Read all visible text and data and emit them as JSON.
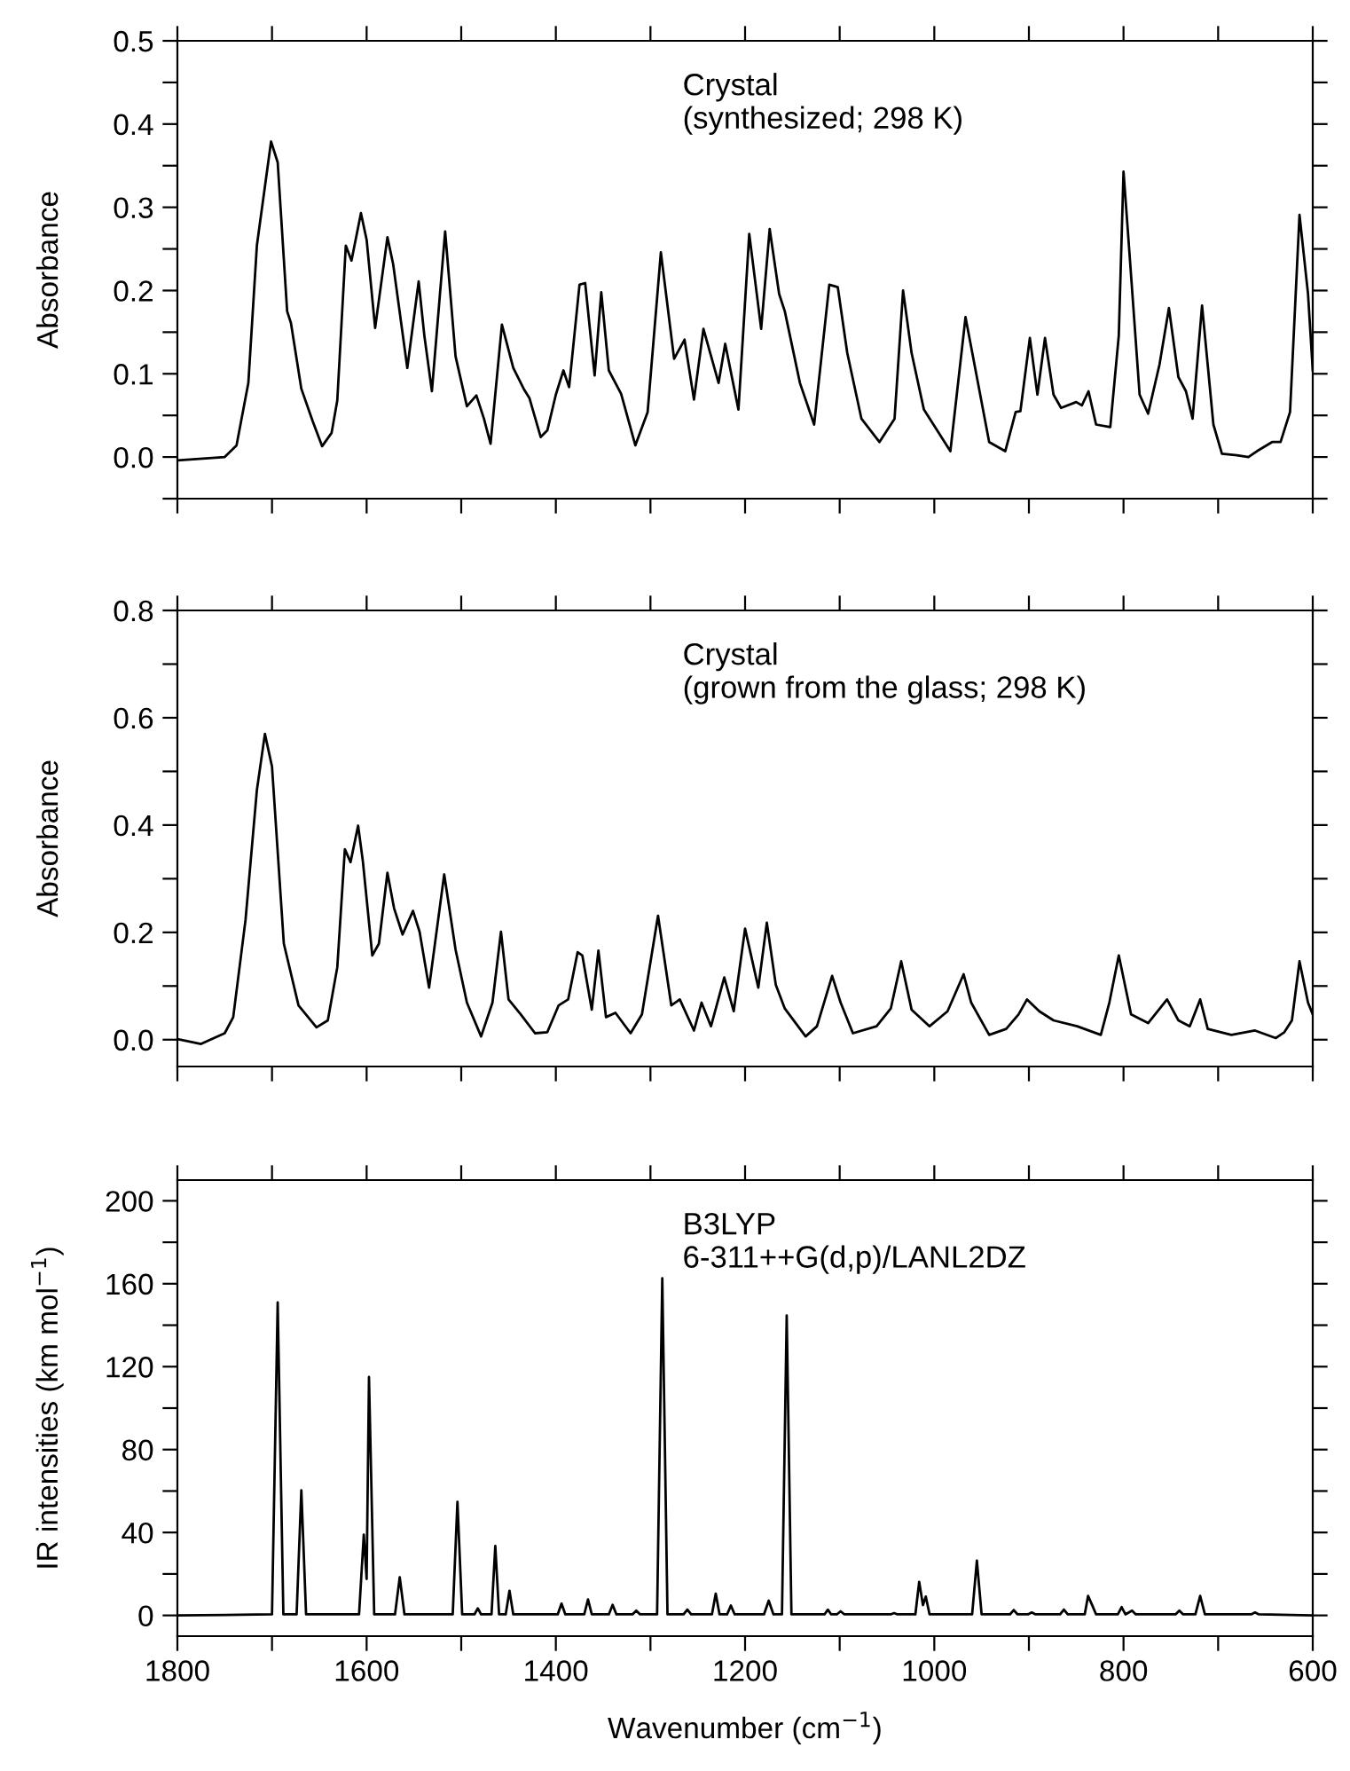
{
  "chart_data": [
    {
      "type": "line",
      "ylabel": "Absorbance",
      "annotations": [
        "Crystal\n(synthesized; 298 K)"
      ],
      "tick_labels": "y",
      "xlim": [
        1800,
        600
      ],
      "xticks": [
        {
          "value": 1800,
          "label": null
        },
        {
          "value": 1700,
          "label": null
        },
        {
          "value": 1600,
          "label": null
        },
        {
          "value": 1500,
          "label": null
        },
        {
          "value": 1400,
          "label": null
        },
        {
          "value": 1300,
          "label": null
        },
        {
          "value": 1200,
          "label": null
        },
        {
          "value": 1100,
          "label": null
        },
        {
          "value": 1000,
          "label": null
        },
        {
          "value": 900,
          "label": null
        },
        {
          "value": 800,
          "label": null
        },
        {
          "value": 700,
          "label": null
        },
        {
          "value": 600,
          "label": null
        }
      ],
      "ylim": [
        -0.05,
        0.5
      ],
      "yticks": [
        {
          "value": -0.05,
          "label": null
        },
        {
          "value": 0.0,
          "label": "0.0"
        },
        {
          "value": 0.05,
          "label": null
        },
        0.1,
        {
          "value": 0.15,
          "label": null
        },
        0.2,
        {
          "value": 0.25,
          "label": null
        },
        0.3,
        {
          "value": 0.35,
          "label": null
        },
        0.4,
        {
          "value": 0.45,
          "label": null
        },
        0.5
      ],
      "series": [
        {
          "color": "#000000",
          "x": [
            1800,
            1750,
            1737.5,
            1725,
            1716,
            1701,
            1694,
            1684,
            1680,
            1669,
            1657,
            1647,
            1637,
            1631,
            1622,
            1616,
            1606,
            1600,
            1591,
            1578,
            1572,
            1557,
            1545,
            1539,
            1531,
            1517,
            1506,
            1494,
            1484,
            1476,
            1469,
            1457,
            1445,
            1434,
            1428,
            1416,
            1409,
            1400,
            1392,
            1386,
            1375,
            1369,
            1359,
            1352,
            1344,
            1331,
            1316,
            1303,
            1289,
            1275,
            1264,
            1254,
            1244,
            1228,
            1221,
            1207,
            1195.6,
            1183,
            1174,
            1164,
            1158,
            1142,
            1127,
            1111,
            1102,
            1092,
            1077,
            1058,
            1042,
            1033,
            1024,
            1011,
            983,
            967,
            955,
            942,
            925,
            914,
            909,
            899,
            891,
            883,
            874,
            866,
            850,
            844,
            837,
            829,
            814,
            805,
            800,
            792,
            783,
            774,
            762,
            752,
            742,
            734,
            727,
            717,
            705,
            696,
            680,
            668,
            659,
            643,
            634,
            624,
            614,
            605,
            600
          ],
          "values": [
            -0.004,
            0.0,
            0.014,
            0.089,
            0.254,
            0.379,
            0.354,
            0.175,
            0.161,
            0.082,
            0.043,
            0.013,
            0.029,
            0.068,
            0.254,
            0.236,
            0.293,
            0.261,
            0.155,
            0.264,
            0.232,
            0.107,
            0.211,
            0.146,
            0.079,
            0.271,
            0.121,
            0.061,
            0.074,
            0.046,
            0.016,
            0.159,
            0.107,
            0.082,
            0.071,
            0.024,
            0.032,
            0.075,
            0.104,
            0.084,
            0.207,
            0.209,
            0.098,
            0.198,
            0.104,
            0.076,
            0.014,
            0.054,
            0.246,
            0.118,
            0.141,
            0.069,
            0.154,
            0.089,
            0.136,
            0.057,
            0.268,
            0.154,
            0.274,
            0.196,
            0.175,
            0.089,
            0.039,
            0.207,
            0.204,
            0.125,
            0.046,
            0.018,
            0.046,
            0.2,
            0.125,
            0.057,
            0.007,
            0.168,
            0.096,
            0.018,
            0.007,
            0.054,
            0.055,
            0.143,
            0.075,
            0.143,
            0.075,
            0.059,
            0.066,
            0.062,
            0.079,
            0.039,
            0.036,
            0.146,
            0.343,
            0.218,
            0.075,
            0.052,
            0.111,
            0.179,
            0.096,
            0.079,
            0.046,
            0.182,
            0.039,
            0.004,
            0.002,
            0.0,
            0.007,
            0.018,
            0.018,
            0.054,
            0.291,
            0.196,
            0.104
          ]
        }
      ]
    },
    {
      "type": "line",
      "ylabel": "Absorbance",
      "annotations": [
        "Crystal\n(grown from the glass; 298 K)"
      ],
      "tick_labels": "y",
      "xlim": [
        1800,
        600
      ],
      "xticks": [
        {
          "value": 1800,
          "label": null
        },
        {
          "value": 1700,
          "label": null
        },
        {
          "value": 1600,
          "label": null
        },
        {
          "value": 1500,
          "label": null
        },
        {
          "value": 1400,
          "label": null
        },
        {
          "value": 1300,
          "label": null
        },
        {
          "value": 1200,
          "label": null
        },
        {
          "value": 1100,
          "label": null
        },
        {
          "value": 1000,
          "label": null
        },
        {
          "value": 900,
          "label": null
        },
        {
          "value": 800,
          "label": null
        },
        {
          "value": 700,
          "label": null
        },
        {
          "value": 600,
          "label": null
        }
      ],
      "ylim": [
        -0.05,
        0.8
      ],
      "yticks": [
        {
          "value": 0.0,
          "label": "0.0"
        },
        {
          "value": 0.1,
          "label": null
        },
        0.2,
        {
          "value": 0.3,
          "label": null
        },
        0.4,
        {
          "value": 0.5,
          "label": null
        },
        0.6,
        {
          "value": 0.7,
          "label": null
        },
        0.8
      ],
      "series": [
        {
          "color": "#000000",
          "x": [
            1800,
            1775,
            1750,
            1741,
            1728,
            1716,
            1707.5,
            1700,
            1687.5,
            1672,
            1653,
            1641,
            1631,
            1623,
            1617,
            1609,
            1604,
            1594,
            1587,
            1578,
            1571,
            1562,
            1551,
            1544,
            1534,
            1518,
            1506,
            1494,
            1479,
            1467,
            1458,
            1450,
            1437,
            1422,
            1409,
            1397,
            1387,
            1377,
            1372,
            1362,
            1355,
            1347,
            1337,
            1321,
            1309,
            1292,
            1278,
            1269,
            1254,
            1246,
            1236,
            1222,
            1212,
            1200,
            1186,
            1177,
            1167.5,
            1158,
            1136,
            1124,
            1108,
            1099,
            1086,
            1061,
            1046,
            1035,
            1024,
            1005,
            986,
            969,
            961,
            942,
            924,
            911,
            902,
            889,
            874,
            849,
            824,
            815,
            805,
            792,
            774,
            754,
            742,
            730,
            719,
            711,
            686,
            661,
            639,
            630,
            622,
            614,
            605,
            600
          ],
          "values": [
            0.001,
            -0.008,
            0.012,
            0.042,
            0.223,
            0.465,
            0.57,
            0.509,
            0.179,
            0.064,
            0.023,
            0.036,
            0.135,
            0.355,
            0.331,
            0.399,
            0.333,
            0.157,
            0.179,
            0.311,
            0.245,
            0.196,
            0.24,
            0.201,
            0.097,
            0.308,
            0.168,
            0.069,
            0.006,
            0.069,
            0.201,
            0.075,
            0.047,
            0.012,
            0.014,
            0.064,
            0.075,
            0.163,
            0.157,
            0.056,
            0.166,
            0.042,
            0.05,
            0.012,
            0.047,
            0.231,
            0.064,
            0.075,
            0.017,
            0.069,
            0.025,
            0.116,
            0.053,
            0.207,
            0.097,
            0.218,
            0.102,
            0.058,
            0.006,
            0.025,
            0.119,
            0.069,
            0.012,
            0.025,
            0.058,
            0.146,
            0.056,
            0.025,
            0.053,
            0.122,
            0.069,
            0.009,
            0.02,
            0.047,
            0.075,
            0.053,
            0.036,
            0.025,
            0.009,
            0.069,
            0.157,
            0.047,
            0.031,
            0.075,
            0.036,
            0.025,
            0.075,
            0.02,
            0.009,
            0.017,
            0.003,
            0.014,
            0.036,
            0.146,
            0.069,
            0.047
          ]
        }
      ]
    },
    {
      "type": "line",
      "ylabel": "IR intensities (km mol$^{−1}$)",
      "xlabel": "Wavenumber (cm$^{−1}$)",
      "annotations": [
        "B3LYP\n6-311++G(d,p)/LANL2DZ"
      ],
      "xlim": [
        1800,
        600
      ],
      "xticks": [
        1800,
        {
          "value": 1700,
          "label": null
        },
        1600,
        {
          "value": 1500,
          "label": null
        },
        1400,
        {
          "value": 1300,
          "label": null
        },
        1200,
        {
          "value": 1100,
          "label": null
        },
        1000,
        {
          "value": 900,
          "label": null
        },
        800,
        {
          "value": 700,
          "label": null
        },
        600
      ],
      "ylim": [
        -10,
        210
      ],
      "yticks": [
        0,
        {
          "value": 20,
          "label": null
        },
        40,
        {
          "value": 60,
          "label": null
        },
        80,
        {
          "value": 100,
          "label": null
        },
        120,
        {
          "value": 140,
          "label": null
        },
        160,
        {
          "value": 180,
          "label": null
        },
        200
      ],
      "series": [
        {
          "color": "#000000",
          "x": [
            1800,
            1700,
            1694,
            1688,
            1674,
            1669,
            1664,
            1608,
            1603,
            1600,
            1597.5,
            1592,
            1570,
            1565,
            1560,
            1509,
            1504,
            1499,
            1486,
            1482.5,
            1479,
            1468,
            1464,
            1460,
            1453,
            1449,
            1445,
            1398,
            1394,
            1390,
            1370,
            1366,
            1362,
            1344,
            1340,
            1336,
            1319,
            1315,
            1311,
            1293,
            1287.5,
            1282,
            1265,
            1261,
            1257,
            1235,
            1231,
            1227,
            1219,
            1215,
            1211,
            1180,
            1175,
            1170,
            1161,
            1156,
            1151,
            1116,
            1112.5,
            1109,
            1103,
            1099,
            1095,
            1046,
            1042.5,
            1039,
            1020,
            1016,
            1012,
            1009,
            1005,
            960,
            955,
            950,
            920,
            916,
            912,
            901,
            897,
            893,
            867,
            863,
            859,
            841,
            837.5,
            833,
            829,
            806,
            802,
            798,
            791,
            787,
            745,
            741,
            737,
            724,
            719,
            714,
            665,
            661,
            657,
            600
          ],
          "values": [
            0,
            0.5,
            151,
            0.5,
            0.5,
            60.4,
            0.5,
            0.5,
            39,
            17.6,
            115,
            0.5,
            0.5,
            18.4,
            0.5,
            0.5,
            54.8,
            0.5,
            0.5,
            3.4,
            0.5,
            0.5,
            33.5,
            0.5,
            0.5,
            11.9,
            0.5,
            0.5,
            5.7,
            0.5,
            0.5,
            7.7,
            0.5,
            0.5,
            5.1,
            0.5,
            0.5,
            2.3,
            0.5,
            0.5,
            162.6,
            0.5,
            0.5,
            2.8,
            0.5,
            0.5,
            10.5,
            0.5,
            0.5,
            4.8,
            0.5,
            0.5,
            7.1,
            0.5,
            0.5,
            144.7,
            0.5,
            0.5,
            2.8,
            0.5,
            0.5,
            2,
            0.5,
            0.5,
            1.1,
            0.5,
            0.5,
            16.2,
            5,
            9.1,
            0.5,
            0.5,
            26.4,
            0.5,
            0.5,
            2.6,
            0.5,
            0.5,
            1.4,
            0.5,
            0.5,
            2.8,
            0.5,
            0.5,
            9.4,
            4.8,
            0.5,
            0.5,
            4,
            0.5,
            2.3,
            0.5,
            0.5,
            2.3,
            0.5,
            0.5,
            9.4,
            0.5,
            0.5,
            1.4,
            0.5,
            0
          ]
        }
      ]
    }
  ]
}
